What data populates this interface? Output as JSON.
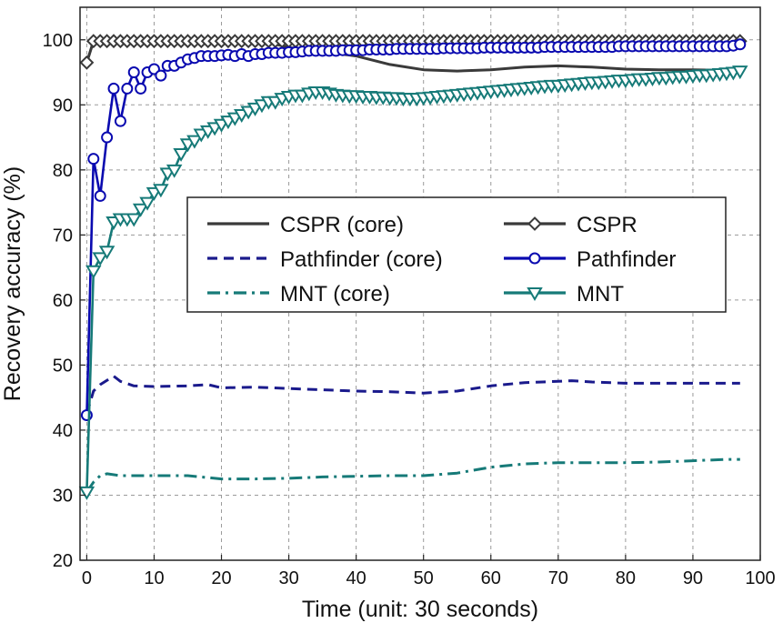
{
  "chart_data": {
    "type": "line",
    "title": "",
    "xlabel": "Time (unit: 30 seconds)",
    "ylabel": "Recovery accuracy (%)",
    "xlim": [
      -1,
      100
    ],
    "ylim": [
      20,
      105
    ],
    "xticks": [
      "0",
      "10",
      "20",
      "30",
      "40",
      "50",
      "60",
      "70",
      "80",
      "90",
      "100"
    ],
    "yticks": [
      "20",
      "30",
      "40",
      "50",
      "60",
      "70",
      "80",
      "90",
      "100"
    ],
    "grid": true,
    "legend_position": "center-left",
    "series": [
      {
        "name": "CSPR (core)",
        "color": "#3a3a3a",
        "line": "solid",
        "marker": "none",
        "x": [
          0,
          1,
          2,
          5,
          10,
          20,
          27,
          30,
          35,
          40,
          45,
          50,
          55,
          60,
          65,
          70,
          75,
          80,
          85,
          90,
          95,
          97
        ],
        "y": [
          96.5,
          99.8,
          99.8,
          99.8,
          99.8,
          99.8,
          99.6,
          98.8,
          98.2,
          97.5,
          96.2,
          95.4,
          95.2,
          95.4,
          95.8,
          96.0,
          95.8,
          95.5,
          95.4,
          95.4,
          95.3,
          95.3
        ]
      },
      {
        "name": "CSPR",
        "color": "#3a3a3a",
        "line": "solid",
        "marker": "diamond",
        "x": [
          0,
          1,
          2,
          3,
          4,
          5,
          6,
          7,
          8,
          9,
          10,
          11,
          12,
          13,
          14,
          15,
          16,
          17,
          18,
          19,
          20,
          21,
          22,
          23,
          24,
          25,
          26,
          27,
          28,
          29,
          30,
          31,
          32,
          33,
          34,
          35,
          36,
          37,
          38,
          39,
          40,
          41,
          42,
          43,
          44,
          45,
          46,
          47,
          48,
          49,
          50,
          51,
          52,
          53,
          54,
          55,
          56,
          57,
          58,
          59,
          60,
          61,
          62,
          63,
          64,
          65,
          66,
          67,
          68,
          69,
          70,
          71,
          72,
          73,
          74,
          75,
          76,
          77,
          78,
          79,
          80,
          81,
          82,
          83,
          84,
          85,
          86,
          87,
          88,
          89,
          90,
          91,
          92,
          93,
          94,
          95,
          96,
          97
        ],
        "y": [
          96.5,
          99.8,
          99.8,
          99.8,
          99.8,
          99.8,
          99.8,
          99.8,
          99.8,
          99.8,
          99.8,
          99.8,
          99.8,
          99.8,
          99.8,
          99.8,
          99.8,
          99.8,
          99.8,
          99.8,
          99.8,
          99.8,
          99.8,
          99.8,
          99.8,
          99.8,
          99.8,
          99.8,
          99.8,
          99.8,
          99.8,
          99.8,
          99.8,
          99.8,
          99.8,
          99.8,
          99.8,
          99.8,
          99.8,
          99.8,
          99.8,
          99.8,
          99.8,
          99.8,
          99.8,
          99.8,
          99.8,
          99.8,
          99.8,
          99.8,
          99.8,
          99.8,
          99.8,
          99.8,
          99.8,
          99.8,
          99.8,
          99.8,
          99.8,
          99.8,
          99.8,
          99.8,
          99.8,
          99.8,
          99.8,
          99.8,
          99.8,
          99.8,
          99.8,
          99.8,
          99.8,
          99.8,
          99.8,
          99.8,
          99.8,
          99.8,
          99.8,
          99.8,
          99.8,
          99.8,
          99.8,
          99.8,
          99.8,
          99.8,
          99.8,
          99.8,
          99.8,
          99.8,
          99.8,
          99.8,
          99.8,
          99.8,
          99.8,
          99.8,
          99.8,
          99.8,
          99.8,
          99.8
        ]
      },
      {
        "name": "Pathfinder (core)",
        "color": "#1a1a8c",
        "line": "dashed",
        "marker": "none",
        "x": [
          0,
          1,
          2,
          4,
          5,
          7,
          10,
          15,
          18,
          20,
          25,
          30,
          35,
          40,
          45,
          50,
          55,
          60,
          65,
          70,
          72,
          75,
          80,
          85,
          90,
          95,
          97
        ],
        "y": [
          42.5,
          46.0,
          47.0,
          48.3,
          47.5,
          46.8,
          46.7,
          46.8,
          47.0,
          46.5,
          46.6,
          46.4,
          46.2,
          46.0,
          45.9,
          45.7,
          46.0,
          46.8,
          47.3,
          47.5,
          47.6,
          47.4,
          47.2,
          47.2,
          47.2,
          47.2,
          47.2
        ]
      },
      {
        "name": "Pathfinder",
        "color": "#0a0ab0",
        "line": "solid",
        "marker": "circle",
        "x": [
          0,
          1,
          2,
          3,
          4,
          5,
          6,
          7,
          8,
          9,
          10,
          11,
          12,
          13,
          14,
          15,
          16,
          17,
          18,
          19,
          20,
          21,
          22,
          23,
          24,
          25,
          26,
          27,
          28,
          29,
          30,
          31,
          32,
          33,
          34,
          35,
          36,
          37,
          38,
          39,
          40,
          41,
          42,
          43,
          44,
          45,
          46,
          47,
          48,
          49,
          50,
          51,
          52,
          53,
          54,
          55,
          56,
          57,
          58,
          59,
          60,
          61,
          62,
          63,
          64,
          65,
          66,
          67,
          68,
          69,
          70,
          71,
          72,
          73,
          74,
          75,
          76,
          77,
          78,
          79,
          80,
          81,
          82,
          83,
          84,
          85,
          86,
          87,
          88,
          89,
          90,
          91,
          92,
          93,
          94,
          95,
          96,
          97
        ],
        "y": [
          42.3,
          81.7,
          76.0,
          85.0,
          92.5,
          87.5,
          92.5,
          95.0,
          92.5,
          95.0,
          95.5,
          94.5,
          96.0,
          96.0,
          96.5,
          97.0,
          97.2,
          97.5,
          97.5,
          97.5,
          97.6,
          97.7,
          97.5,
          97.8,
          97.5,
          97.8,
          97.8,
          98.0,
          98.0,
          98.0,
          98.1,
          98.1,
          98.2,
          98.3,
          98.3,
          98.3,
          98.3,
          98.3,
          98.4,
          98.4,
          98.4,
          98.4,
          98.5,
          98.5,
          98.5,
          98.5,
          98.6,
          98.6,
          98.6,
          98.6,
          98.6,
          98.6,
          98.6,
          98.7,
          98.7,
          98.7,
          98.7,
          98.7,
          98.7,
          98.8,
          98.8,
          98.8,
          98.8,
          98.8,
          98.8,
          98.8,
          98.8,
          98.8,
          98.9,
          98.9,
          98.9,
          98.9,
          98.9,
          98.9,
          98.9,
          98.9,
          98.9,
          98.9,
          98.9,
          99.0,
          99.0,
          99.0,
          99.0,
          99.0,
          99.0,
          99.0,
          99.0,
          99.0,
          99.0,
          99.0,
          99.0,
          99.0,
          99.0,
          99.0,
          99.0,
          99.0,
          99.1,
          99.3
        ]
      },
      {
        "name": "MNT (core)",
        "color": "#167a78",
        "line": "dashdot",
        "marker": "none",
        "x": [
          0,
          1,
          2,
          3,
          5,
          10,
          15,
          20,
          25,
          30,
          35,
          40,
          45,
          50,
          55,
          60,
          65,
          70,
          75,
          80,
          85,
          90,
          95,
          97
        ],
        "y": [
          30.5,
          32.0,
          33.0,
          33.3,
          33.0,
          33.0,
          33.0,
          32.5,
          32.5,
          32.6,
          32.8,
          32.9,
          33.0,
          33.0,
          33.4,
          34.3,
          34.8,
          35.0,
          35.0,
          35.0,
          35.1,
          35.3,
          35.5,
          35.5
        ]
      },
      {
        "name": "MNT",
        "color": "#167a78",
        "line": "solid",
        "marker": "triangle-down",
        "x": [
          0,
          1,
          2,
          3,
          4,
          5,
          6,
          7,
          8,
          9,
          10,
          11,
          12,
          13,
          14,
          15,
          16,
          17,
          18,
          19,
          20,
          21,
          22,
          23,
          24,
          25,
          26,
          27,
          28,
          29,
          30,
          31,
          32,
          33,
          34,
          35,
          36,
          37,
          38,
          39,
          40,
          41,
          42,
          43,
          44,
          45,
          46,
          47,
          48,
          49,
          50,
          51,
          52,
          53,
          54,
          55,
          56,
          57,
          58,
          59,
          60,
          61,
          62,
          63,
          64,
          65,
          66,
          67,
          68,
          69,
          70,
          71,
          72,
          73,
          74,
          75,
          76,
          77,
          78,
          79,
          80,
          81,
          82,
          83,
          84,
          85,
          86,
          87,
          88,
          89,
          90,
          91,
          92,
          93,
          94,
          95,
          96,
          97
        ],
        "y": [
          30.5,
          64.5,
          66.5,
          67.5,
          72.0,
          72.5,
          72.5,
          72.5,
          74.0,
          75.0,
          76.5,
          77.0,
          79.5,
          80.0,
          82.5,
          84.0,
          84.5,
          85.5,
          86.0,
          86.5,
          87.0,
          87.5,
          88.0,
          88.5,
          89.0,
          89.5,
          90.0,
          90.5,
          90.5,
          91.0,
          91.3,
          91.5,
          91.5,
          91.8,
          92.0,
          92.0,
          91.8,
          91.6,
          91.5,
          91.4,
          91.4,
          91.3,
          91.3,
          91.2,
          91.2,
          91.1,
          91.1,
          91.0,
          91.0,
          91.0,
          91.1,
          91.2,
          91.3,
          91.4,
          91.5,
          91.6,
          91.7,
          91.8,
          91.9,
          92.0,
          92.1,
          92.2,
          92.3,
          92.4,
          92.5,
          92.6,
          92.7,
          92.8,
          92.9,
          93.0,
          93.0,
          93.1,
          93.2,
          93.3,
          93.4,
          93.5,
          93.5,
          93.6,
          93.7,
          93.8,
          93.8,
          93.9,
          94.0,
          94.0,
          94.1,
          94.2,
          94.2,
          94.3,
          94.4,
          94.4,
          94.5,
          94.6,
          94.6,
          94.7,
          94.8,
          94.9,
          95.0,
          95.2
        ]
      }
    ]
  }
}
